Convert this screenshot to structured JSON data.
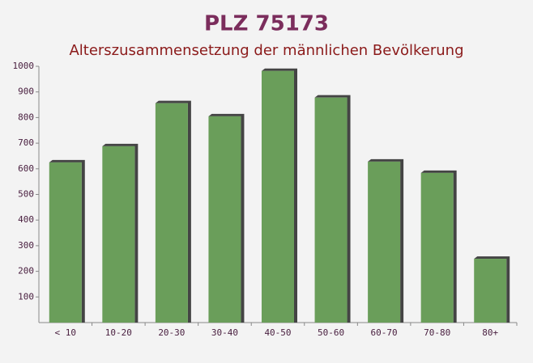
{
  "chart_data": {
    "type": "bar",
    "title": "PLZ 75173",
    "subtitle": "Alterszusammensetzung der männlichen Bevölkerung",
    "categories": [
      "< 10",
      "10-20",
      "20-30",
      "30-40",
      "40-50",
      "50-60",
      "60-70",
      "70-80",
      "80+"
    ],
    "values": [
      625,
      688,
      856,
      805,
      982,
      878,
      628,
      584,
      249
    ],
    "color": "#6a9e5a",
    "ylim": [
      0,
      1000
    ],
    "yticks": [
      100,
      200,
      300,
      400,
      500,
      600,
      700,
      800,
      900,
      1000
    ]
  }
}
